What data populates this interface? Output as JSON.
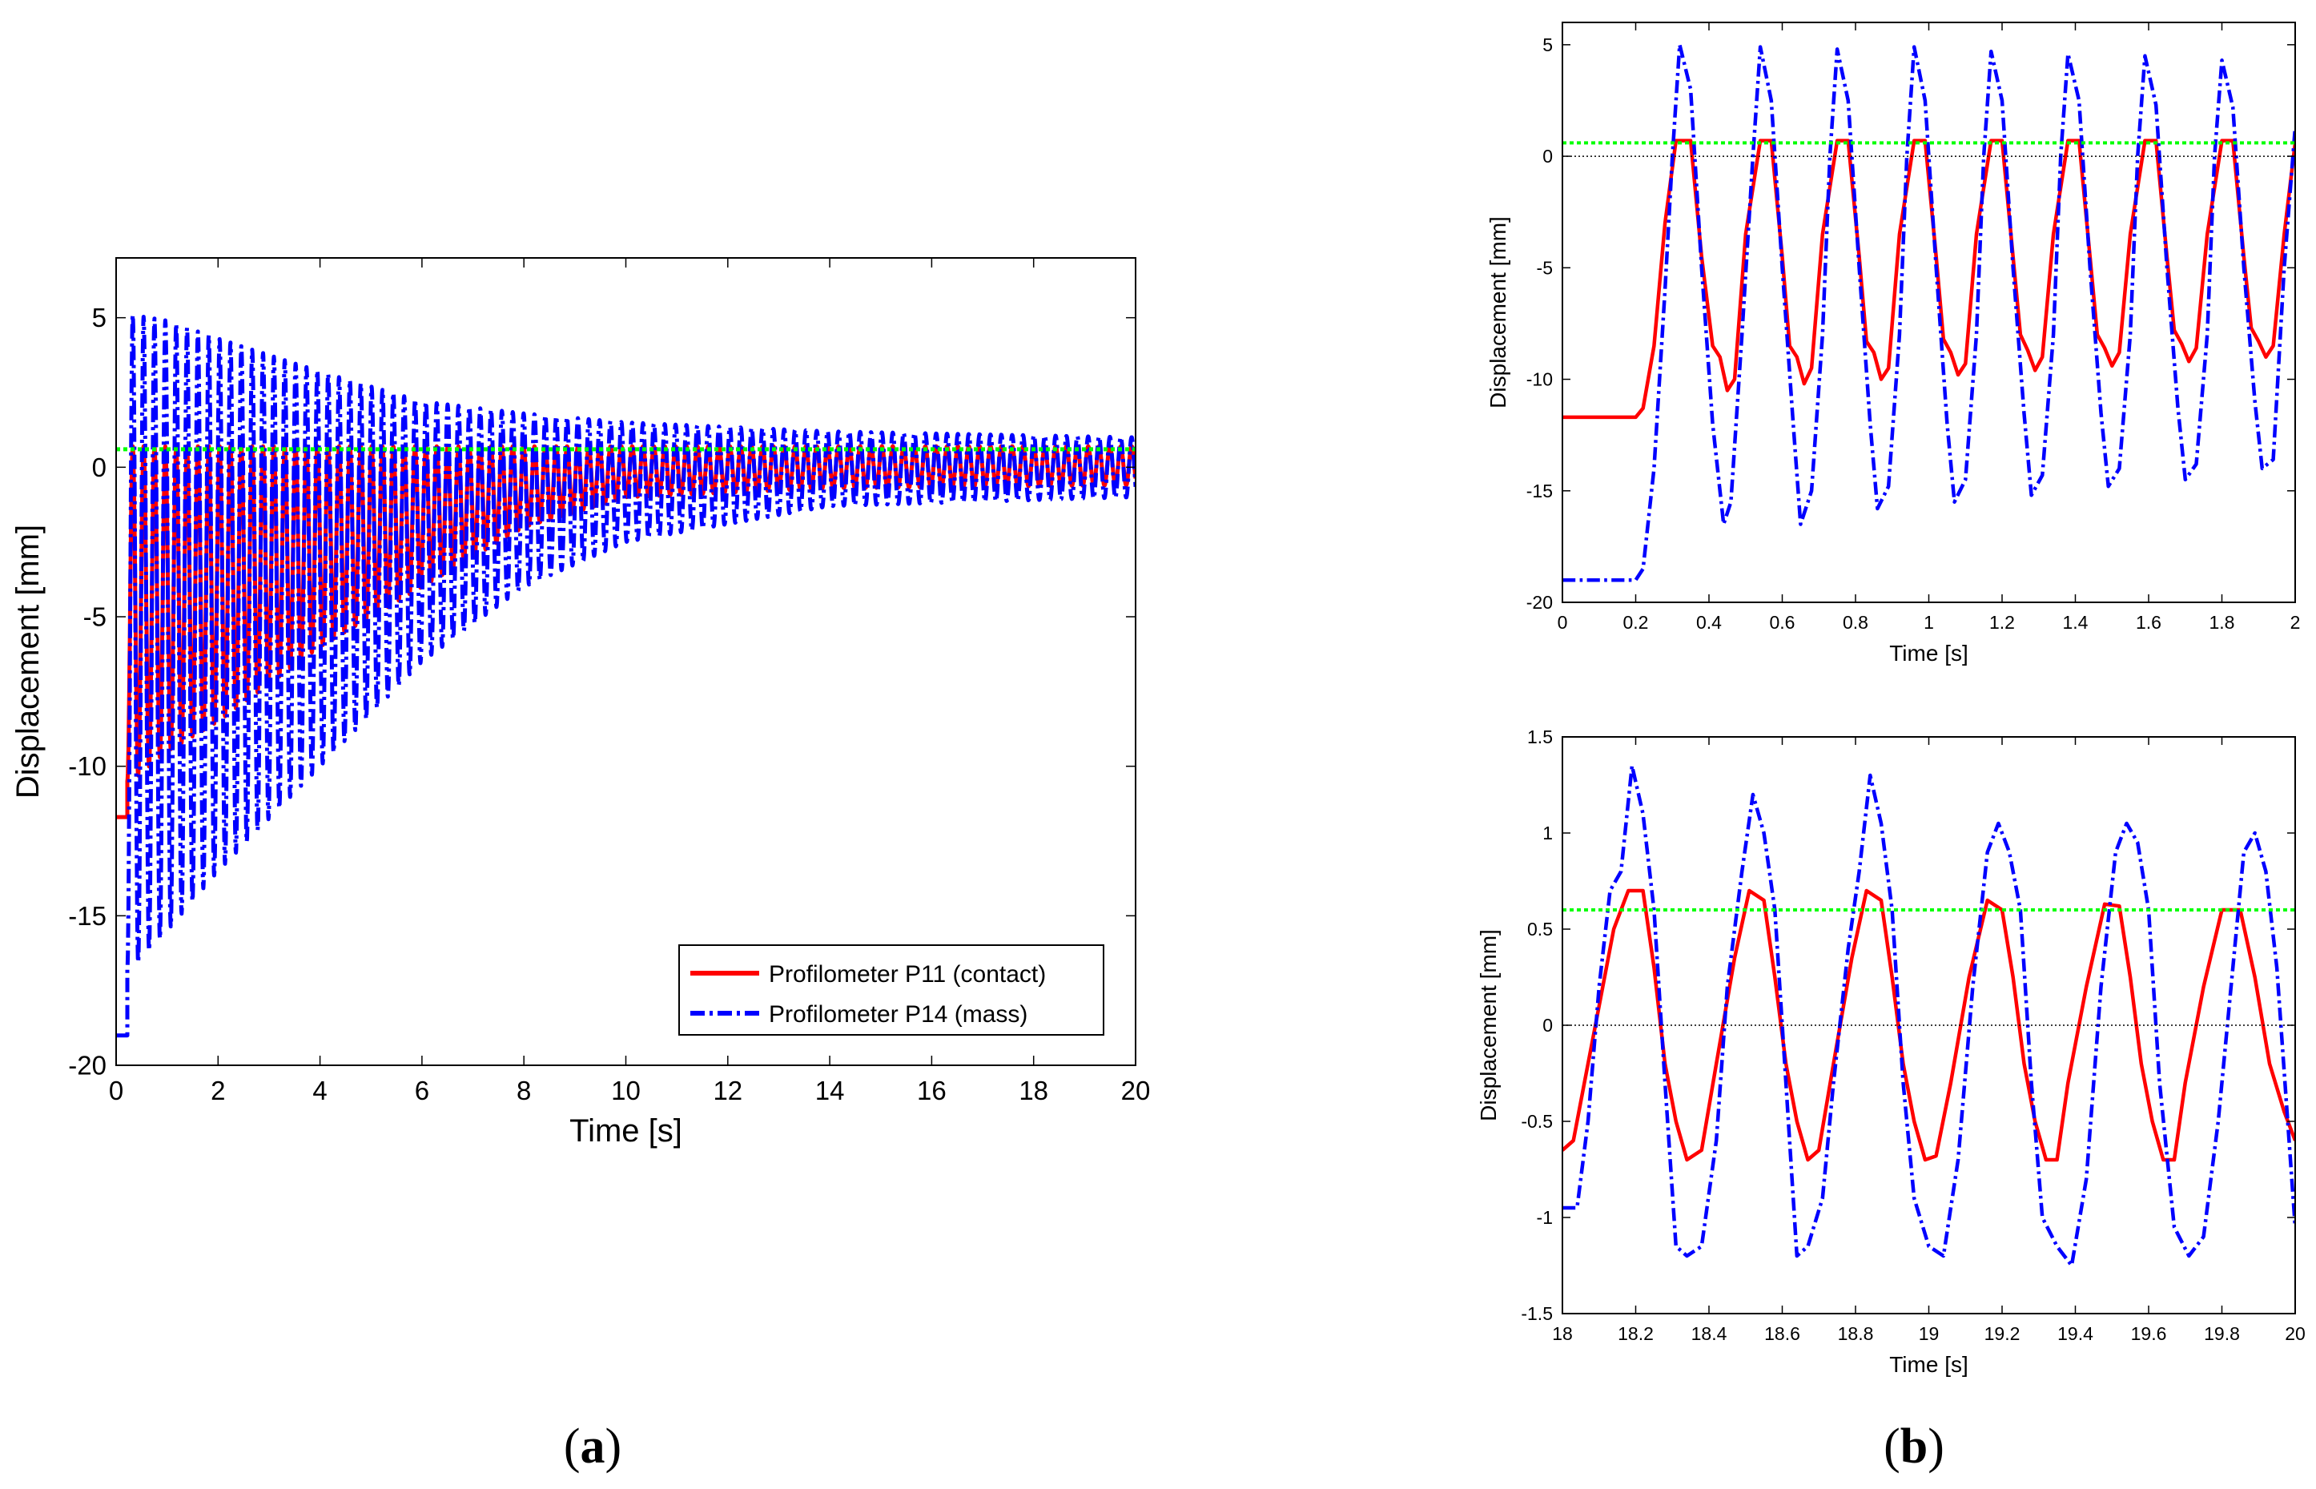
{
  "panels": [
    {
      "label_open": "(",
      "label_letter": "a",
      "label_close": ")"
    },
    {
      "label_open": "(",
      "label_letter": "b",
      "label_close": ")"
    }
  ],
  "colors": {
    "contact": "#ff0000",
    "mass": "#0000ff",
    "threshold": "#00ff00",
    "zero_line": "#000000"
  },
  "legend": {
    "entries": [
      "Profilometer P11 (contact)",
      "Profilometer P14 (mass)"
    ]
  },
  "chart_data": [
    {
      "id": "a",
      "type": "line",
      "xlabel": "Time [s]",
      "ylabel": "Displacement [mm]",
      "xlim": [
        0,
        20
      ],
      "ylim": [
        -20,
        7
      ],
      "xticks": [
        0,
        2,
        4,
        6,
        8,
        10,
        12,
        14,
        16,
        18,
        20
      ],
      "yticks": [
        -20,
        -15,
        -10,
        -5,
        0,
        5
      ],
      "threshold_y": 0.6,
      "series": [
        {
          "name": "Profilometer P11 (contact)",
          "color": "#ff0000",
          "style": "solid",
          "start_value": -11.7,
          "start_until_s": 0.22,
          "period_s": 0.213,
          "upper_envelope": {
            "x": [
              0.3,
              20
            ],
            "y": [
              0.7,
              0.7
            ]
          },
          "lower_envelope": {
            "x": [
              0.3,
              1,
              2,
              4,
              6,
              8,
              10,
              14,
              20
            ],
            "y": [
              -10.5,
              -9.5,
              -8.5,
              -6,
              -4,
              -2,
              -1,
              -0.7,
              -0.6
            ]
          }
        },
        {
          "name": "Profilometer P14 (mass)",
          "color": "#0000ff",
          "style": "dashdot",
          "start_value": -19.0,
          "start_until_s": 0.22,
          "period_s": 0.213,
          "upper_envelope": {
            "x": [
              0.3,
              1,
              2,
              4,
              6,
              8,
              10,
              14,
              20
            ],
            "y": [
              5.1,
              4.9,
              4.3,
              3.2,
              2.2,
              1.8,
              1.5,
              1.2,
              1.0
            ]
          },
          "lower_envelope": {
            "x": [
              0.3,
              1,
              2,
              4,
              6,
              8,
              10,
              14,
              20
            ],
            "y": [
              -16.8,
              -15.5,
              -13.5,
              -10,
              -6.5,
              -4,
              -2.5,
              -1.3,
              -1.0
            ]
          }
        }
      ]
    },
    {
      "id": "b_top",
      "type": "line",
      "xlabel": "Time [s]",
      "ylabel": "Displacement [mm]",
      "xlim": [
        0,
        2
      ],
      "ylim": [
        -20,
        6
      ],
      "xticks": [
        0,
        0.2,
        0.4,
        0.6,
        0.8,
        1,
        1.2,
        1.4,
        1.6,
        1.8,
        2
      ],
      "xtick_labels": [
        "0",
        "0.2",
        "0.4",
        "0.6",
        "0.8",
        "1",
        "1.2",
        "1.4",
        "1.6",
        "1.8",
        "2"
      ],
      "yticks": [
        -20,
        -15,
        -10,
        -5,
        0,
        5
      ],
      "threshold_y": 0.6,
      "zero_line": true,
      "series": [
        {
          "name": "Profilometer P11 (contact)",
          "color": "#ff0000",
          "style": "solid",
          "x": [
            0,
            0.2,
            0.22,
            0.25,
            0.28,
            0.31,
            0.35,
            0.38,
            0.41,
            0.43,
            0.45,
            0.47,
            0.5,
            0.54,
            0.57,
            0.6,
            0.62,
            0.64,
            0.66,
            0.68,
            0.71,
            0.75,
            0.78,
            0.81,
            0.83,
            0.85,
            0.87,
            0.89,
            0.92,
            0.96,
            0.99,
            1.02,
            1.04,
            1.06,
            1.08,
            1.1,
            1.13,
            1.17,
            1.2,
            1.23,
            1.25,
            1.27,
            1.29,
            1.31,
            1.34,
            1.38,
            1.41,
            1.44,
            1.46,
            1.48,
            1.5,
            1.52,
            1.55,
            1.59,
            1.62,
            1.65,
            1.67,
            1.69,
            1.71,
            1.73,
            1.76,
            1.8,
            1.83,
            1.86,
            1.88,
            1.9,
            1.92,
            1.94,
            1.97,
            2.0
          ],
          "y": [
            -11.7,
            -11.7,
            -11.3,
            -8.5,
            -3.0,
            0.7,
            0.7,
            -4.5,
            -8.5,
            -9.0,
            -10.5,
            -10.0,
            -3.5,
            0.7,
            0.7,
            -4.5,
            -8.5,
            -9.0,
            -10.2,
            -9.5,
            -3.5,
            0.7,
            0.7,
            -4.5,
            -8.3,
            -8.8,
            -10.0,
            -9.5,
            -3.5,
            0.7,
            0.7,
            -4.5,
            -8.2,
            -8.8,
            -9.8,
            -9.3,
            -3.5,
            0.7,
            0.7,
            -4.5,
            -8.0,
            -8.7,
            -9.6,
            -9.0,
            -3.5,
            0.7,
            0.7,
            -4.5,
            -8.0,
            -8.6,
            -9.4,
            -8.8,
            -3.5,
            0.7,
            0.7,
            -4.5,
            -7.8,
            -8.4,
            -9.2,
            -8.6,
            -3.5,
            0.7,
            0.7,
            -4.5,
            -7.7,
            -8.3,
            -9.0,
            -8.5,
            -3.5,
            0.6
          ]
        },
        {
          "name": "Profilometer P14 (mass)",
          "color": "#0000ff",
          "style": "dashdot",
          "x": [
            0,
            0.2,
            0.22,
            0.25,
            0.28,
            0.3,
            0.32,
            0.35,
            0.38,
            0.41,
            0.44,
            0.46,
            0.49,
            0.52,
            0.54,
            0.57,
            0.6,
            0.63,
            0.65,
            0.68,
            0.71,
            0.73,
            0.75,
            0.78,
            0.81,
            0.84,
            0.86,
            0.89,
            0.92,
            0.94,
            0.96,
            0.99,
            1.02,
            1.05,
            1.07,
            1.1,
            1.13,
            1.15,
            1.17,
            1.2,
            1.23,
            1.26,
            1.28,
            1.31,
            1.34,
            1.36,
            1.38,
            1.41,
            1.44,
            1.47,
            1.49,
            1.52,
            1.55,
            1.57,
            1.59,
            1.62,
            1.65,
            1.68,
            1.7,
            1.73,
            1.76,
            1.78,
            1.8,
            1.83,
            1.86,
            1.89,
            1.91,
            1.94,
            1.97,
            2.0
          ],
          "y": [
            -19.0,
            -19.0,
            -18.5,
            -14,
            -6,
            0,
            5.0,
            3.0,
            -5,
            -12,
            -16.5,
            -15.5,
            -8,
            0,
            4.9,
            2.5,
            -5,
            -12,
            -16.5,
            -15.0,
            -8,
            0,
            4.8,
            2.5,
            -5,
            -12,
            -15.8,
            -14.8,
            -8,
            0,
            4.9,
            2.5,
            -5,
            -12,
            -15.5,
            -14.5,
            -8,
            0,
            4.7,
            2.5,
            -5,
            -11.5,
            -15.2,
            -14.3,
            -8,
            0,
            4.6,
            2.5,
            -5,
            -11.5,
            -14.8,
            -14.0,
            -8,
            0,
            4.5,
            2.3,
            -5,
            -11.3,
            -14.5,
            -13.8,
            -8,
            0,
            4.3,
            2.2,
            -5,
            -11.0,
            -14.0,
            -13.6,
            -5,
            1.3
          ]
        }
      ]
    },
    {
      "id": "b_bottom",
      "type": "line",
      "xlabel": "Time [s]",
      "ylabel": "Displacement [mm]",
      "xlim": [
        18,
        20
      ],
      "ylim": [
        -1.5,
        1.5
      ],
      "xticks": [
        18,
        18.2,
        18.4,
        18.6,
        18.8,
        19,
        19.2,
        19.4,
        19.6,
        19.8,
        20
      ],
      "xtick_labels": [
        "18",
        "18.2",
        "18.4",
        "18.6",
        "18.8",
        "19",
        "19.2",
        "19.4",
        "19.6",
        "19.8",
        "20"
      ],
      "yticks": [
        -1.5,
        -1,
        -0.5,
        0,
        0.5,
        1,
        1.5
      ],
      "ytick_labels": [
        "-1.5",
        "-1",
        "-0.5",
        "0",
        "0.5",
        "1",
        "1.5"
      ],
      "threshold_y": 0.6,
      "zero_line": true,
      "series": [
        {
          "name": "Profilometer P11 (contact)",
          "color": "#ff0000",
          "style": "solid",
          "x": [
            18.0,
            18.03,
            18.06,
            18.1,
            18.14,
            18.18,
            18.22,
            18.25,
            18.28,
            18.31,
            18.34,
            18.38,
            18.42,
            18.47,
            18.51,
            18.55,
            18.58,
            18.61,
            18.64,
            18.67,
            18.7,
            18.74,
            18.79,
            18.83,
            18.87,
            18.9,
            18.93,
            18.96,
            18.99,
            19.02,
            19.06,
            19.11,
            19.16,
            19.2,
            19.23,
            19.26,
            19.29,
            19.32,
            19.35,
            19.38,
            19.43,
            19.48,
            19.52,
            19.55,
            19.58,
            19.61,
            19.64,
            19.67,
            19.7,
            19.75,
            19.8,
            19.85,
            19.89,
            19.93,
            19.97,
            20.0
          ],
          "y": [
            -0.65,
            -0.6,
            -0.3,
            0.1,
            0.5,
            0.7,
            0.7,
            0.3,
            -0.2,
            -0.5,
            -0.7,
            -0.65,
            -0.2,
            0.35,
            0.7,
            0.65,
            0.25,
            -0.2,
            -0.5,
            -0.7,
            -0.65,
            -0.2,
            0.35,
            0.7,
            0.65,
            0.25,
            -0.2,
            -0.5,
            -0.7,
            -0.68,
            -0.3,
            0.25,
            0.65,
            0.6,
            0.25,
            -0.2,
            -0.5,
            -0.7,
            -0.7,
            -0.3,
            0.2,
            0.63,
            0.62,
            0.25,
            -0.2,
            -0.5,
            -0.7,
            -0.7,
            -0.3,
            0.2,
            0.6,
            0.6,
            0.25,
            -0.2,
            -0.45,
            -0.6
          ]
        },
        {
          "name": "Profilometer P14 (mass)",
          "color": "#0000ff",
          "style": "dashdot",
          "x": [
            18.0,
            18.04,
            18.07,
            18.1,
            18.13,
            18.16,
            18.19,
            18.22,
            18.25,
            18.28,
            18.31,
            18.34,
            18.38,
            18.42,
            18.45,
            18.49,
            18.52,
            18.55,
            18.58,
            18.61,
            18.64,
            18.67,
            18.71,
            18.74,
            18.78,
            18.81,
            18.84,
            18.87,
            18.9,
            18.93,
            18.96,
            19.0,
            19.04,
            19.08,
            19.12,
            19.16,
            19.19,
            19.22,
            19.25,
            19.28,
            19.31,
            19.35,
            19.39,
            19.43,
            19.47,
            19.51,
            19.54,
            19.57,
            19.6,
            19.63,
            19.67,
            19.71,
            19.75,
            19.79,
            19.83,
            19.86,
            19.89,
            19.92,
            19.95,
            20.0
          ],
          "y": [
            -0.95,
            -0.95,
            -0.5,
            0.2,
            0.7,
            0.8,
            1.35,
            1.1,
            0.6,
            -0.3,
            -1.15,
            -1.2,
            -1.15,
            -0.6,
            0.2,
            0.8,
            1.2,
            1.0,
            0.6,
            -0.3,
            -1.2,
            -1.15,
            -0.9,
            -0.3,
            0.4,
            0.8,
            1.3,
            1.05,
            0.6,
            -0.3,
            -0.9,
            -1.15,
            -1.2,
            -0.7,
            0.2,
            0.9,
            1.05,
            0.9,
            0.6,
            -0.3,
            -1.0,
            -1.15,
            -1.25,
            -0.8,
            0.2,
            0.9,
            1.05,
            0.95,
            0.6,
            -0.3,
            -1.05,
            -1.2,
            -1.1,
            -0.5,
            0.3,
            0.9,
            1.0,
            0.8,
            0.3,
            -1.05
          ]
        }
      ]
    }
  ]
}
